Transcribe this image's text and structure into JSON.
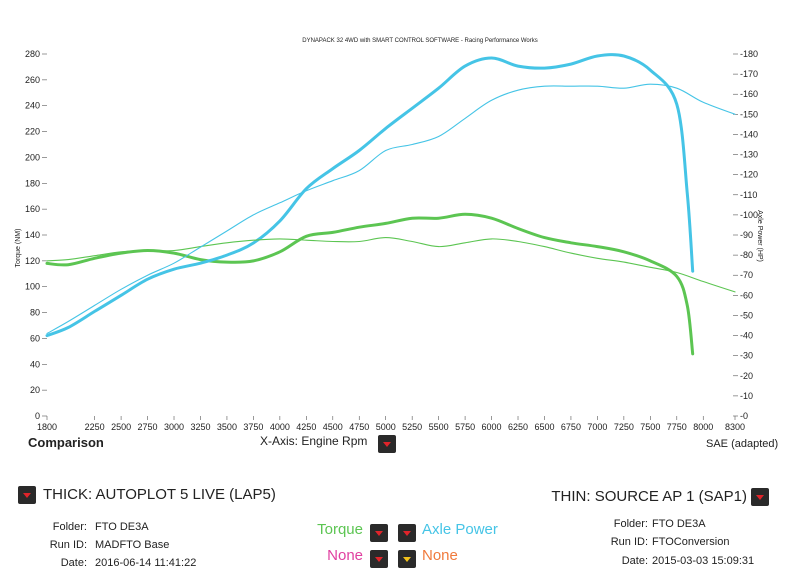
{
  "chart_data": {
    "type": "line",
    "title": "DYNAPACK 32 4WD with SMART CONTROL SOFTWARE - Racing Performance Works",
    "xlabel": "",
    "ylabel": "Torque (NM)",
    "y2label": "Axle Power (HP)",
    "xlim": [
      1800,
      8300
    ],
    "ylim": [
      0,
      280
    ],
    "y2lim": [
      0,
      180
    ],
    "x_ticks": [
      1800,
      2250,
      2500,
      2750,
      3000,
      3250,
      3500,
      3750,
      4000,
      4250,
      4500,
      4750,
      5000,
      5250,
      5500,
      5750,
      6000,
      6250,
      6500,
      6750,
      7000,
      7250,
      7500,
      7750,
      8000,
      8300
    ],
    "y_ticks": [
      0,
      20,
      40,
      60,
      80,
      100,
      120,
      140,
      160,
      180,
      200,
      220,
      240,
      260,
      280
    ],
    "y2_ticks": [
      0,
      10,
      20,
      30,
      40,
      50,
      60,
      70,
      80,
      90,
      100,
      110,
      120,
      130,
      140,
      150,
      160,
      170,
      180
    ],
    "grid": false,
    "series": [
      {
        "name": "Torque",
        "axis": "left",
        "style": "thick",
        "color": "#5cc552",
        "x": [
          1800,
          2000,
          2250,
          2500,
          2750,
          3000,
          3250,
          3500,
          3750,
          4000,
          4250,
          4500,
          4750,
          5000,
          5250,
          5500,
          5750,
          6000,
          6250,
          6500,
          6750,
          7000,
          7250,
          7500,
          7750,
          7850,
          7900
        ],
        "y": [
          118,
          117,
          122,
          126,
          128,
          126,
          121,
          119,
          120,
          127,
          139,
          142,
          146,
          149,
          153,
          153,
          156,
          153,
          145,
          138,
          134,
          131,
          127,
          120,
          108,
          85,
          48
        ]
      },
      {
        "name": "Axle Power",
        "axis": "right",
        "style": "thick",
        "color": "#45c4e6",
        "x": [
          1800,
          2000,
          2250,
          2500,
          2750,
          3000,
          3250,
          3500,
          3750,
          4000,
          4250,
          4500,
          4750,
          5000,
          5250,
          5500,
          5750,
          6000,
          6250,
          6500,
          6750,
          7000,
          7250,
          7500,
          7750,
          7850,
          7900
        ],
        "y": [
          40,
          44,
          52,
          60,
          68,
          73,
          76,
          80,
          86,
          97,
          113,
          123,
          132,
          143,
          153,
          163,
          174,
          178,
          174,
          173,
          175,
          179,
          179,
          172,
          155,
          110,
          72
        ]
      },
      {
        "name": "Torque",
        "axis": "left",
        "style": "thin",
        "color": "#5cc552",
        "x": [
          1800,
          2000,
          2250,
          2500,
          2750,
          3000,
          3250,
          3500,
          3750,
          4000,
          4250,
          4500,
          4750,
          5000,
          5250,
          5500,
          5750,
          6000,
          6250,
          6500,
          6750,
          7000,
          7250,
          7500,
          7750,
          8000,
          8300
        ],
        "y": [
          120,
          121,
          124,
          127,
          128,
          128,
          131,
          134,
          136,
          137,
          136,
          135,
          135,
          138,
          135,
          131,
          134,
          137,
          135,
          131,
          126,
          122,
          119,
          115,
          111,
          104,
          96
        ]
      },
      {
        "name": "Axle Power",
        "axis": "right",
        "style": "thin",
        "color": "#45c4e6",
        "x": [
          1800,
          2000,
          2250,
          2500,
          2750,
          3000,
          3250,
          3500,
          3750,
          4000,
          4250,
          4500,
          4750,
          5000,
          5250,
          5500,
          5750,
          6000,
          6250,
          6500,
          6750,
          7000,
          7250,
          7500,
          7750,
          8000,
          8300
        ],
        "y": [
          41,
          47,
          55,
          63,
          70,
          76,
          84,
          92,
          100,
          106,
          112,
          117,
          122,
          132,
          135,
          139,
          148,
          157,
          162,
          164,
          164,
          164,
          163,
          165,
          163,
          156,
          150
        ]
      }
    ]
  },
  "footer": {
    "comparison": "Comparison",
    "xaxis_label": "X-Axis: Engine Rpm",
    "sae": "SAE (adapted)"
  },
  "thick_run": {
    "title": "THICK: AUTOPLOT 5 LIVE (LAP5)",
    "folder_key": "Folder:",
    "folder": "FTO DE3A",
    "run_key": "Run ID:",
    "run": "MADFTO Base",
    "date_key": "Date:",
    "date": "2016-06-14 11:41:22"
  },
  "thin_run": {
    "title": "THIN: SOURCE AP 1 (SAP1)",
    "folder_key": "Folder:",
    "folder": "FTO DE3A",
    "run_key": "Run ID:",
    "run": "FTOConversion",
    "date_key": "Date:",
    "date": "2015-03-03 15:09:31"
  },
  "selectors": {
    "left_top": "Torque",
    "left_top_color": "#5cc552",
    "right_top": "Axle Power",
    "right_top_color": "#45c4e6",
    "left_bottom": "None",
    "left_bottom_color": "#e040a0",
    "right_bottom": "None",
    "right_bottom_color": "#f07a3c"
  }
}
